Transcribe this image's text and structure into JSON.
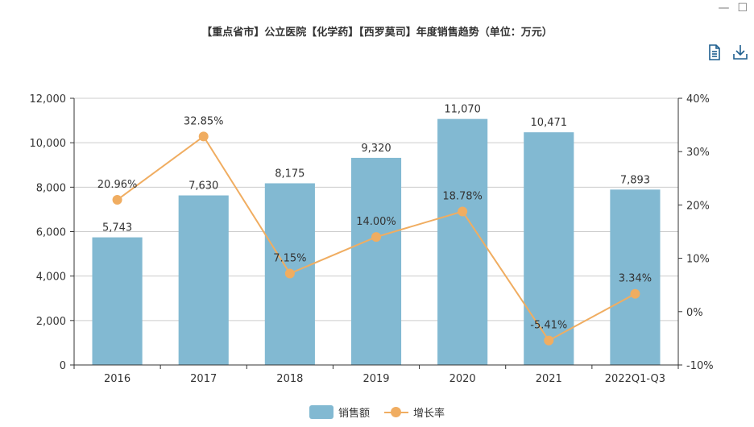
{
  "window": {
    "minimize_glyph": "—",
    "maximize_glyph": "☐"
  },
  "toolbox": {
    "icons": [
      "document-icon",
      "download-icon"
    ],
    "color": "#1f5f8f"
  },
  "colors": {
    "bar": "#82b9d2",
    "line": "#f0ad61",
    "axis": "#333333",
    "grid": "#cccccc"
  },
  "chart_data": {
    "type": "bar",
    "title": "【重点省市】公立医院【化学药】【西罗莫司】年度销售趋势（单位：万元）",
    "categories": [
      "2016",
      "2017",
      "2018",
      "2019",
      "2020",
      "2021",
      "2022Q1-Q3"
    ],
    "series": [
      {
        "name": "销售额",
        "type": "bar",
        "axis": "left",
        "values": [
          5743,
          7630,
          8175,
          9320,
          11070,
          10471,
          7893
        ],
        "labels": [
          "5,743",
          "7,630",
          "8,175",
          "9,320",
          "11,070",
          "10,471",
          "7,893"
        ]
      },
      {
        "name": "增长率",
        "type": "line",
        "axis": "right",
        "values": [
          20.96,
          32.85,
          7.15,
          14.0,
          18.78,
          -5.41,
          3.34
        ],
        "labels": [
          "20.96%",
          "32.85%",
          "7.15%",
          "14.00%",
          "18.78%",
          "-5.41%",
          "3.34%"
        ]
      }
    ],
    "y_left": {
      "min": 0,
      "max": 12000,
      "ticks": [
        0,
        2000,
        4000,
        6000,
        8000,
        10000,
        12000
      ],
      "tick_labels": [
        "0",
        "2,000",
        "4,000",
        "6,000",
        "8,000",
        "10,000",
        "12,000"
      ]
    },
    "y_right": {
      "min": -10,
      "max": 40,
      "ticks": [
        -10,
        0,
        10,
        20,
        30,
        40
      ],
      "tick_labels": [
        "-10%",
        "0%",
        "10%",
        "20%",
        "30%",
        "40%"
      ]
    },
    "grid": true,
    "legend_position": "bottom-center"
  }
}
